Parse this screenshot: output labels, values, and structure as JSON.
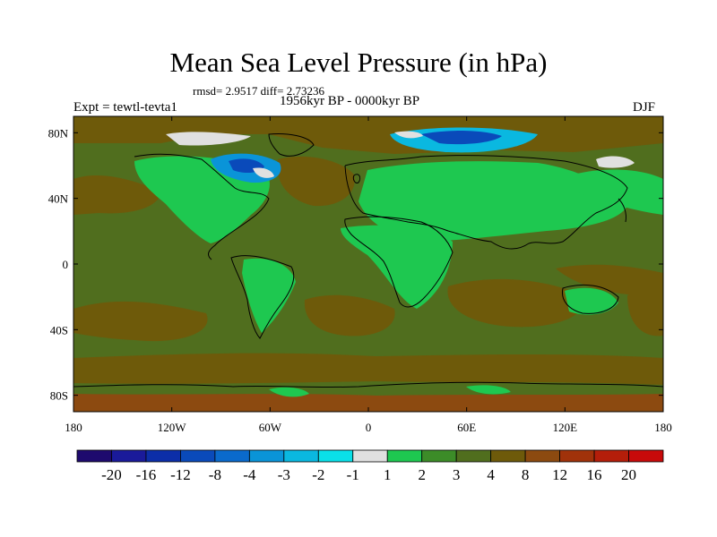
{
  "title": "Mean Sea Level Pressure (in hPa)",
  "stats": "rmsd= 2.9517 diff= 2.73236",
  "expt": "Expt = tewtl-tevta1",
  "period": "1956kyr BP - 0000kyr BP",
  "season": "DJF",
  "map": {
    "lat_labels": [
      "80N",
      "40N",
      "0",
      "40S",
      "80S"
    ],
    "lon_labels": [
      "180",
      "120W",
      "60W",
      "0",
      "60E",
      "120E",
      "180"
    ],
    "lat_range": [
      -90,
      90
    ],
    "lon_range": [
      -180,
      180
    ]
  },
  "colorbar": {
    "colors": [
      "#1e0a6e",
      "#1a1a9a",
      "#0c2ea8",
      "#0a4aba",
      "#0a6acc",
      "#0a94d8",
      "#0ab8e0",
      "#0ae0e8",
      "#e0e0e0",
      "#1ec850",
      "#3c8c28",
      "#506e1e",
      "#6e5a0a",
      "#8c4a10",
      "#a0320a",
      "#b41e0a",
      "#c80a0a"
    ],
    "labels": [
      "-20",
      "-16",
      "-12",
      "-8",
      "-4",
      "-3",
      "-2",
      "-1",
      "1",
      "2",
      "3",
      "4",
      "8",
      "12",
      "16",
      "20"
    ]
  }
}
